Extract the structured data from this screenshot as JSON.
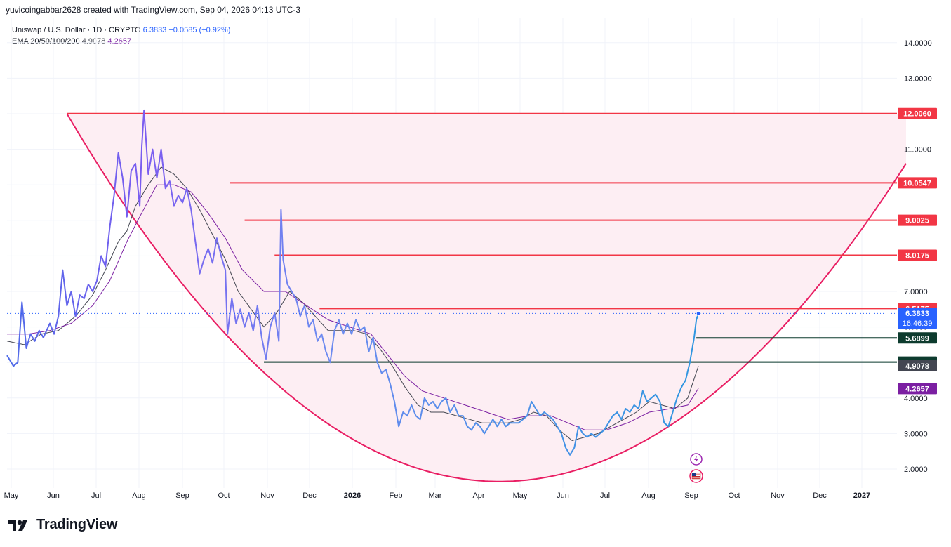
{
  "header": {
    "attribution": "yuvicoingabbar2628 created with TradingView.com, Sep 04, 2026 04:13 UTC-3"
  },
  "legend": {
    "symbol_line": "Uniswap / U.S. Dollar · 1D · CRYPTO",
    "last_price": "6.3833",
    "change": "+0.0585 (+0.92%)",
    "ema_label": "EMA 20/50/100/200",
    "ema_value_1": "4.9078",
    "ema_value_2": "4.2657"
  },
  "brand": {
    "name": "TradingView"
  },
  "colors": {
    "price_line_early": "#7b5cf0",
    "price_line_late": "#2f96e0",
    "ema_fast": "#434651",
    "ema_slow": "#7b1fa2",
    "cup_curve": "#e91e63",
    "cup_fill": "#fdeef3",
    "resistance_line": "#f23645",
    "support_line": "#0d3b2e",
    "grid": "#f0f3fa"
  },
  "chart_data": {
    "type": "line",
    "title": "Uniswap / U.S. Dollar · 1D · CRYPTO",
    "ylim": [
      1.4,
      14.6
    ],
    "y_ticks": [
      "14.0000",
      "13.0000",
      "12.0000",
      "11.0000",
      "10.0000",
      "9.0000",
      "8.0000",
      "7.0000",
      "6.0000",
      "5.0000",
      "4.0000",
      "3.0000",
      "2.0000"
    ],
    "x_ticks": [
      "May",
      "Jun",
      "Jul",
      "Aug",
      "Sep",
      "Oct",
      "Nov",
      "Dec",
      "2026",
      "Feb",
      "Mar",
      "Apr",
      "May",
      "Jun",
      "Jul",
      "Aug",
      "Sep",
      "Oct",
      "Nov",
      "Dec",
      "2027"
    ],
    "series": [
      {
        "name": "Uniswap / U.S. Dollar",
        "points": [
          [
            0,
            5.2
          ],
          [
            3,
            4.9
          ],
          [
            5,
            5.0
          ],
          [
            7,
            6.7
          ],
          [
            9,
            5.4
          ],
          [
            11,
            5.8
          ],
          [
            13,
            5.6
          ],
          [
            15,
            5.9
          ],
          [
            17,
            5.7
          ],
          [
            20,
            6.1
          ],
          [
            22,
            5.8
          ],
          [
            24,
            6.3
          ],
          [
            26,
            7.6
          ],
          [
            28,
            6.6
          ],
          [
            30,
            7.0
          ],
          [
            32,
            6.3
          ],
          [
            34,
            6.9
          ],
          [
            36,
            6.8
          ],
          [
            38,
            7.2
          ],
          [
            40,
            7.0
          ],
          [
            42,
            7.3
          ],
          [
            44,
            8.0
          ],
          [
            46,
            7.7
          ],
          [
            48,
            8.8
          ],
          [
            50,
            9.7
          ],
          [
            52,
            10.9
          ],
          [
            54,
            10.2
          ],
          [
            56,
            9.1
          ],
          [
            58,
            10.4
          ],
          [
            60,
            10.6
          ],
          [
            62,
            9.4
          ],
          [
            63,
            11.1
          ],
          [
            64,
            12.1
          ],
          [
            66,
            10.3
          ],
          [
            68,
            11.0
          ],
          [
            70,
            10.2
          ],
          [
            72,
            11.0
          ],
          [
            74,
            9.9
          ],
          [
            76,
            10.1
          ],
          [
            78,
            9.4
          ],
          [
            80,
            9.7
          ],
          [
            82,
            9.5
          ],
          [
            84,
            9.9
          ],
          [
            86,
            9.3
          ],
          [
            88,
            8.4
          ],
          [
            90,
            7.5
          ],
          [
            92,
            7.9
          ],
          [
            94,
            8.2
          ],
          [
            96,
            7.8
          ],
          [
            98,
            8.5
          ],
          [
            100,
            8.0
          ],
          [
            102,
            7.6
          ],
          [
            103,
            5.8
          ],
          [
            105,
            6.8
          ],
          [
            107,
            6.1
          ],
          [
            109,
            6.5
          ],
          [
            111,
            6.0
          ],
          [
            113,
            6.4
          ],
          [
            115,
            5.9
          ],
          [
            117,
            6.6
          ],
          [
            119,
            5.7
          ],
          [
            121,
            5.1
          ],
          [
            123,
            6.0
          ],
          [
            125,
            6.4
          ],
          [
            127,
            5.6
          ],
          [
            128,
            9.3
          ],
          [
            129,
            7.9
          ],
          [
            131,
            7.2
          ],
          [
            133,
            7.0
          ],
          [
            135,
            6.8
          ],
          [
            137,
            6.3
          ],
          [
            139,
            6.6
          ],
          [
            141,
            6.0
          ],
          [
            143,
            6.2
          ],
          [
            145,
            5.6
          ],
          [
            147,
            5.8
          ],
          [
            149,
            5.3
          ],
          [
            151,
            5.0
          ],
          [
            153,
            5.9
          ],
          [
            155,
            6.2
          ],
          [
            157,
            5.8
          ],
          [
            159,
            6.1
          ],
          [
            161,
            5.8
          ],
          [
            163,
            6.2
          ],
          [
            165,
            5.9
          ],
          [
            167,
            6.0
          ],
          [
            169,
            5.3
          ],
          [
            171,
            5.7
          ],
          [
            173,
            5.0
          ],
          [
            175,
            4.7
          ],
          [
            177,
            4.8
          ],
          [
            179,
            4.4
          ],
          [
            181,
            3.9
          ],
          [
            183,
            3.2
          ],
          [
            185,
            3.6
          ],
          [
            187,
            3.5
          ],
          [
            189,
            3.8
          ],
          [
            191,
            3.5
          ],
          [
            193,
            3.4
          ],
          [
            195,
            4.0
          ],
          [
            197,
            3.8
          ],
          [
            199,
            3.9
          ],
          [
            201,
            3.7
          ],
          [
            203,
            3.9
          ],
          [
            205,
            4.0
          ],
          [
            207,
            3.6
          ],
          [
            209,
            3.8
          ],
          [
            211,
            3.5
          ],
          [
            213,
            3.5
          ],
          [
            215,
            3.2
          ],
          [
            217,
            3.1
          ],
          [
            219,
            3.3
          ],
          [
            221,
            3.2
          ],
          [
            223,
            3.0
          ],
          [
            225,
            3.2
          ],
          [
            227,
            3.4
          ],
          [
            229,
            3.2
          ],
          [
            231,
            3.4
          ],
          [
            233,
            3.2
          ],
          [
            235,
            3.3
          ],
          [
            237,
            3.3
          ],
          [
            239,
            3.3
          ],
          [
            241,
            3.4
          ],
          [
            243,
            3.5
          ],
          [
            245,
            3.9
          ],
          [
            247,
            3.7
          ],
          [
            249,
            3.5
          ],
          [
            251,
            3.6
          ],
          [
            253,
            3.5
          ],
          [
            255,
            3.4
          ],
          [
            257,
            3.2
          ],
          [
            259,
            3.0
          ],
          [
            261,
            2.6
          ],
          [
            263,
            2.4
          ],
          [
            265,
            2.6
          ],
          [
            267,
            3.2
          ],
          [
            269,
            3.0
          ],
          [
            271,
            2.9
          ],
          [
            273,
            3.0
          ],
          [
            275,
            2.9
          ],
          [
            277,
            3.0
          ],
          [
            279,
            3.1
          ],
          [
            281,
            3.3
          ],
          [
            283,
            3.5
          ],
          [
            285,
            3.6
          ],
          [
            287,
            3.4
          ],
          [
            289,
            3.7
          ],
          [
            291,
            3.6
          ],
          [
            293,
            3.8
          ],
          [
            295,
            3.7
          ],
          [
            297,
            4.2
          ],
          [
            299,
            3.9
          ],
          [
            301,
            4.0
          ],
          [
            303,
            4.1
          ],
          [
            305,
            3.9
          ],
          [
            307,
            3.3
          ],
          [
            309,
            3.2
          ],
          [
            311,
            3.6
          ],
          [
            313,
            4.0
          ],
          [
            315,
            4.3
          ],
          [
            317,
            4.5
          ],
          [
            319,
            5.0
          ],
          [
            321,
            5.7
          ],
          [
            322,
            6.2
          ],
          [
            323,
            6.38
          ]
        ]
      },
      {
        "name": "EMA",
        "points": [
          [
            0,
            5.6
          ],
          [
            8,
            5.5
          ],
          [
            16,
            5.8
          ],
          [
            24,
            5.9
          ],
          [
            32,
            6.3
          ],
          [
            40,
            6.9
          ],
          [
            46,
            7.6
          ],
          [
            52,
            8.4
          ],
          [
            56,
            8.7
          ],
          [
            60,
            9.4
          ],
          [
            66,
            10.0
          ],
          [
            72,
            10.5
          ],
          [
            78,
            10.3
          ],
          [
            84,
            9.9
          ],
          [
            90,
            9.3
          ],
          [
            96,
            8.6
          ],
          [
            102,
            7.9
          ],
          [
            108,
            7.0
          ],
          [
            114,
            6.5
          ],
          [
            120,
            6.0
          ],
          [
            126,
            6.4
          ],
          [
            132,
            7.0
          ],
          [
            138,
            6.7
          ],
          [
            144,
            6.3
          ],
          [
            150,
            5.9
          ],
          [
            156,
            5.9
          ],
          [
            162,
            5.9
          ],
          [
            168,
            5.8
          ],
          [
            174,
            5.4
          ],
          [
            180,
            4.9
          ],
          [
            186,
            4.3
          ],
          [
            192,
            3.8
          ],
          [
            198,
            3.6
          ],
          [
            204,
            3.6
          ],
          [
            210,
            3.5
          ],
          [
            216,
            3.4
          ],
          [
            222,
            3.3
          ],
          [
            228,
            3.3
          ],
          [
            234,
            3.3
          ],
          [
            240,
            3.4
          ],
          [
            246,
            3.6
          ],
          [
            252,
            3.5
          ],
          [
            258,
            3.1
          ],
          [
            264,
            2.8
          ],
          [
            270,
            2.9
          ],
          [
            276,
            3.0
          ],
          [
            282,
            3.2
          ],
          [
            288,
            3.4
          ],
          [
            294,
            3.6
          ],
          [
            300,
            3.9
          ],
          [
            306,
            3.8
          ],
          [
            312,
            3.7
          ],
          [
            318,
            4.0
          ],
          [
            323,
            4.9
          ]
        ]
      },
      {
        "name": "EMA",
        "points": [
          [
            0,
            5.8
          ],
          [
            10,
            5.8
          ],
          [
            20,
            5.9
          ],
          [
            30,
            6.1
          ],
          [
            40,
            6.6
          ],
          [
            48,
            7.3
          ],
          [
            56,
            8.4
          ],
          [
            62,
            9.1
          ],
          [
            70,
            10.0
          ],
          [
            78,
            10.0
          ],
          [
            86,
            9.8
          ],
          [
            94,
            9.2
          ],
          [
            102,
            8.5
          ],
          [
            110,
            7.6
          ],
          [
            120,
            7.0
          ],
          [
            130,
            7.0
          ],
          [
            140,
            6.6
          ],
          [
            150,
            6.2
          ],
          [
            160,
            6.0
          ],
          [
            170,
            5.8
          ],
          [
            178,
            5.2
          ],
          [
            186,
            4.6
          ],
          [
            194,
            4.2
          ],
          [
            204,
            4.0
          ],
          [
            214,
            3.8
          ],
          [
            224,
            3.6
          ],
          [
            234,
            3.4
          ],
          [
            244,
            3.5
          ],
          [
            254,
            3.5
          ],
          [
            262,
            3.3
          ],
          [
            270,
            3.1
          ],
          [
            280,
            3.1
          ],
          [
            290,
            3.3
          ],
          [
            300,
            3.6
          ],
          [
            310,
            3.7
          ],
          [
            318,
            3.8
          ],
          [
            323,
            4.27
          ]
        ]
      }
    ],
    "horizontal_levels": [
      {
        "price": 12.006,
        "label": "12.0060",
        "kind": "resistance",
        "start": 28
      },
      {
        "price": 10.0547,
        "label": "10.0547",
        "kind": "resistance",
        "start": 104
      },
      {
        "price": 9.0025,
        "label": "9.0025",
        "kind": "resistance",
        "start": 111
      },
      {
        "price": 8.0175,
        "label": "8.0175",
        "kind": "resistance",
        "start": 125
      },
      {
        "price": 6.5175,
        "label": "6.5175",
        "kind": "resistance",
        "start": 146
      },
      {
        "price": 5.6899,
        "label": "5.6899",
        "kind": "support",
        "start": 322
      },
      {
        "price": 5.0122,
        "label": "5.0122",
        "kind": "support",
        "start": 120
      }
    ],
    "price_tags": [
      {
        "price": 6.3833,
        "label": "6.3833",
        "sub": "16:46:39",
        "color": "#2962ff"
      },
      {
        "price": 4.9078,
        "label": "4.9078",
        "color": "#434651"
      },
      {
        "price": 4.2657,
        "label": "4.2657",
        "color": "#7b1fa2"
      }
    ],
    "cup": {
      "left": [
        28,
        12.0
      ],
      "bottom": [
        230,
        1.65
      ],
      "right": [
        420,
        10.6
      ]
    },
    "grid": true
  }
}
